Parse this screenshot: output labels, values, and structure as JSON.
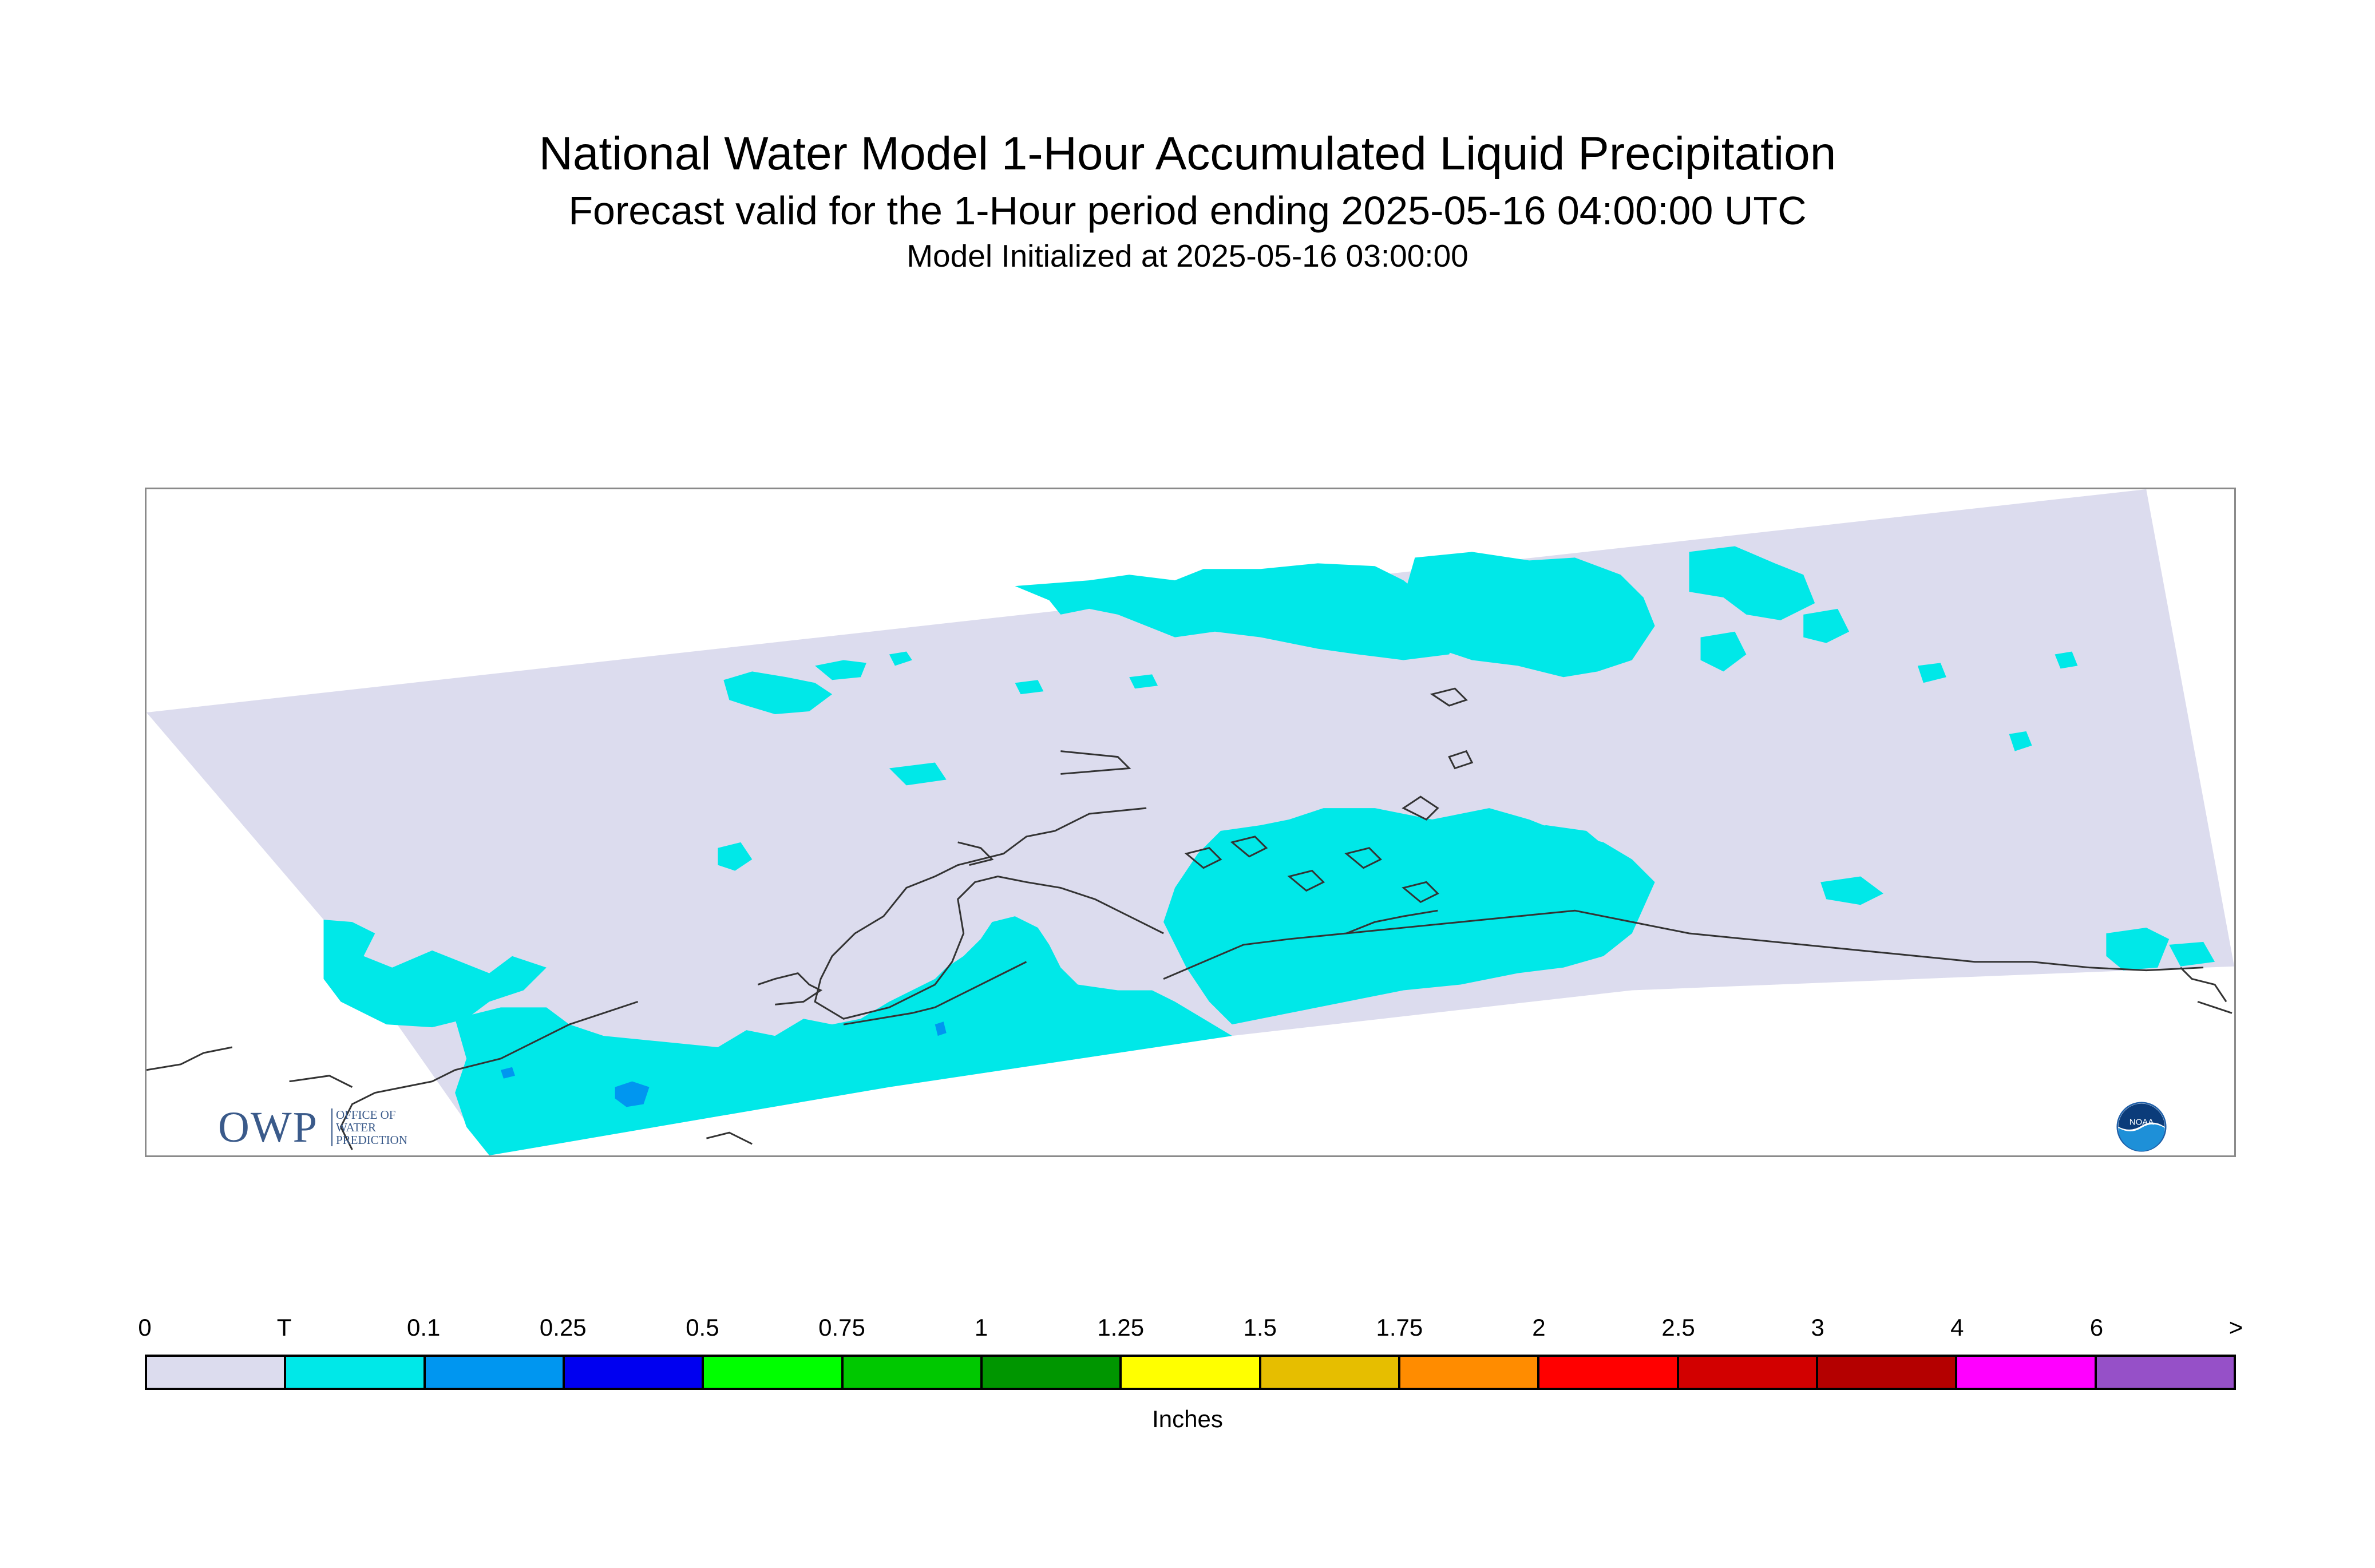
{
  "header": {
    "title": "National Water Model 1-Hour Accumulated Liquid Precipitation",
    "subtitle": "Forecast valid for the 1-Hour period ending 2025-05-16 04:00:00 UTC",
    "init": "Model Initialized at 2025-05-16 03:00:00"
  },
  "logos": {
    "owp_letters": "OWP",
    "owp_sub": [
      "OFFICE OF",
      "WATER",
      "PREDICTION"
    ],
    "noaa_text": "NOAA"
  },
  "legend": {
    "labels": [
      "0",
      "T",
      "0.1",
      "0.25",
      "0.5",
      "0.75",
      "1",
      "1.25",
      "1.5",
      "1.75",
      "2",
      "2.5",
      "3",
      "4",
      "6",
      ">"
    ],
    "colors": [
      "#dcdcee",
      "#00e8e8",
      "#0096f0",
      "#0000f0",
      "#00ff00",
      "#00c800",
      "#009600",
      "#ffff00",
      "#e6be00",
      "#ff8c00",
      "#ff0000",
      "#d20000",
      "#b40000",
      "#ff00ff",
      "#9650c8"
    ],
    "units": "Inches"
  },
  "map": {
    "domain_color": "#dcdcee",
    "trace_color": "#00e8e8",
    "light_color": "#0096f0",
    "coast_color": "#333333"
  }
}
